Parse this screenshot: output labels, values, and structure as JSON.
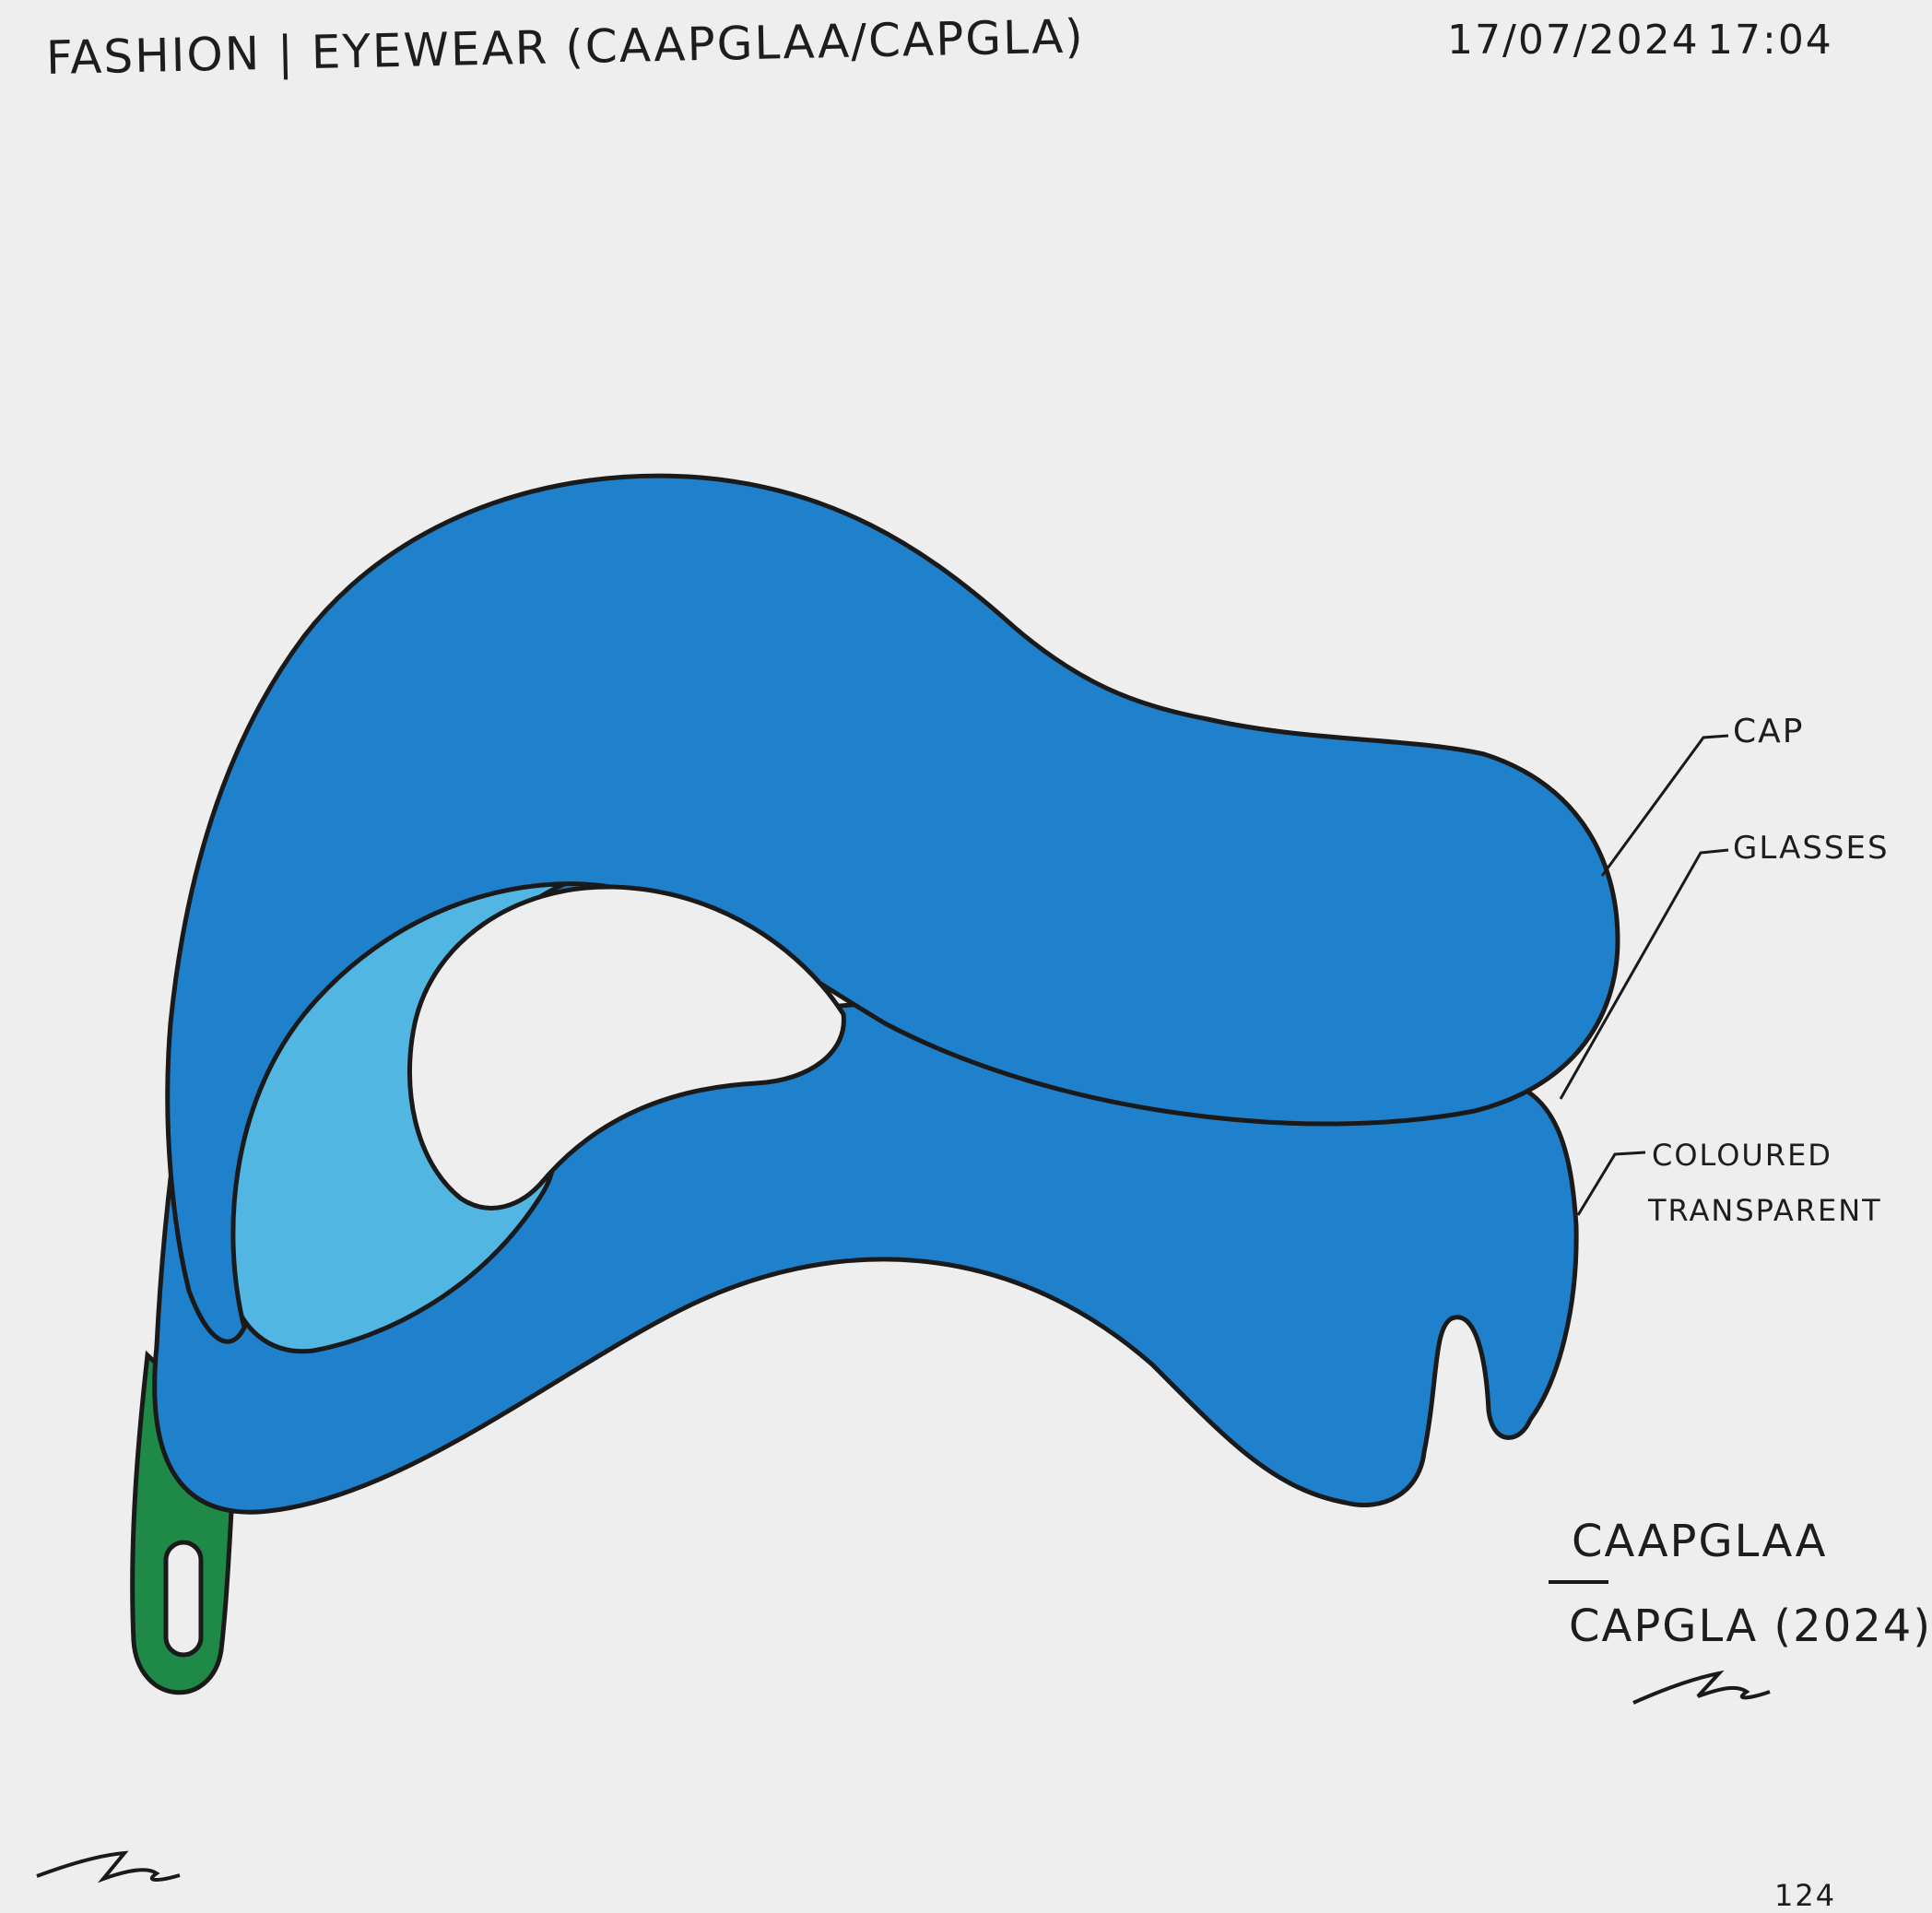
{
  "header": {
    "title": "FASHION | EYEWEAR (CAAPGLAA/CAPGLA)",
    "date": "17/07/2024",
    "time": "17:04"
  },
  "labels": {
    "cap": "CAP",
    "glasses": "GLASSES",
    "coloured": "COLOURED",
    "transparent": "TRANSPARENT"
  },
  "name_block": {
    "line1": "CAAPGLAA",
    "line2": "CAPGLA (2024)"
  },
  "page_number": "124",
  "colors": {
    "paper": "#eeeeef",
    "cap_blue": "#1f80cc",
    "lens_light_blue": "#52b6e3",
    "strap_green": "#1f8a48",
    "ink": "#1a1a1a"
  },
  "icons": {
    "signature": "signature-mark"
  }
}
